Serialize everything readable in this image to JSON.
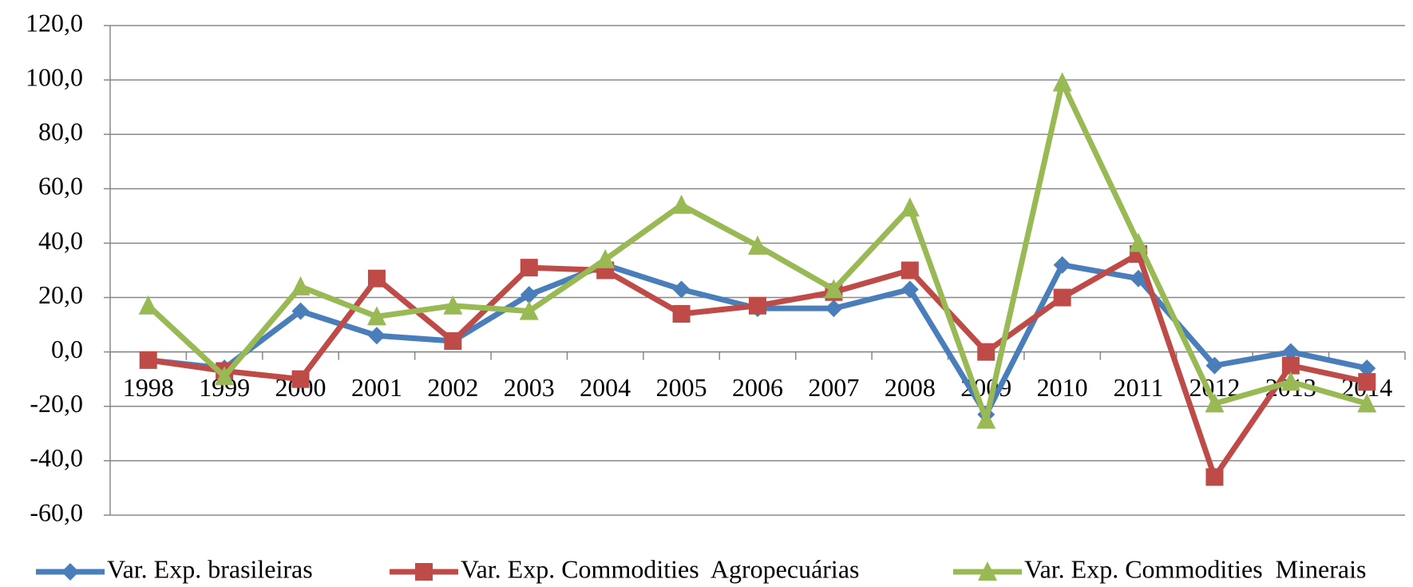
{
  "chart_data": {
    "type": "line",
    "categories": [
      "1998",
      "1999",
      "2000",
      "2001",
      "2002",
      "2003",
      "2004",
      "2005",
      "2006",
      "2007",
      "2008",
      "2009",
      "2010",
      "2011",
      "2012",
      "2013",
      "2014"
    ],
    "series": [
      {
        "name": "Var. Exp. brasileiras",
        "color": "#4a7ebb",
        "marker": "diamond",
        "values": [
          -3,
          -6,
          15,
          6,
          4,
          21,
          32,
          23,
          16,
          16,
          23,
          -23,
          32,
          27,
          -5,
          0,
          -6
        ]
      },
      {
        "name": "Var. Exp. Commodities  Agropecuárias",
        "color": "#be4b48",
        "marker": "square",
        "values": [
          -3,
          -7,
          -10,
          27,
          4,
          31,
          30,
          14,
          17,
          22,
          30,
          0,
          20,
          36,
          -46,
          -5,
          -11
        ]
      },
      {
        "name": "Var. Exp. Commodities  Minerais",
        "color": "#98b954",
        "marker": "triangle",
        "values": [
          17,
          -9,
          24,
          13,
          17,
          15,
          34,
          54,
          39,
          23,
          53,
          -25,
          99,
          40,
          -19,
          -11,
          -19
        ]
      }
    ],
    "ylim": [
      -60,
      120
    ],
    "yticks": [
      {
        "value": -60,
        "label": "-60,0"
      },
      {
        "value": -40,
        "label": "-40,0"
      },
      {
        "value": -20,
        "label": "-20,0"
      },
      {
        "value": 0,
        "label": "0,0"
      },
      {
        "value": 20,
        "label": "20,0"
      },
      {
        "value": 40,
        "label": "40,0"
      },
      {
        "value": 60,
        "label": "60,0"
      },
      {
        "value": 80,
        "label": "80,0"
      },
      {
        "value": 100,
        "label": "100,0"
      },
      {
        "value": 120,
        "label": "120,0"
      }
    ],
    "grid": true,
    "legend": "bottom"
  }
}
